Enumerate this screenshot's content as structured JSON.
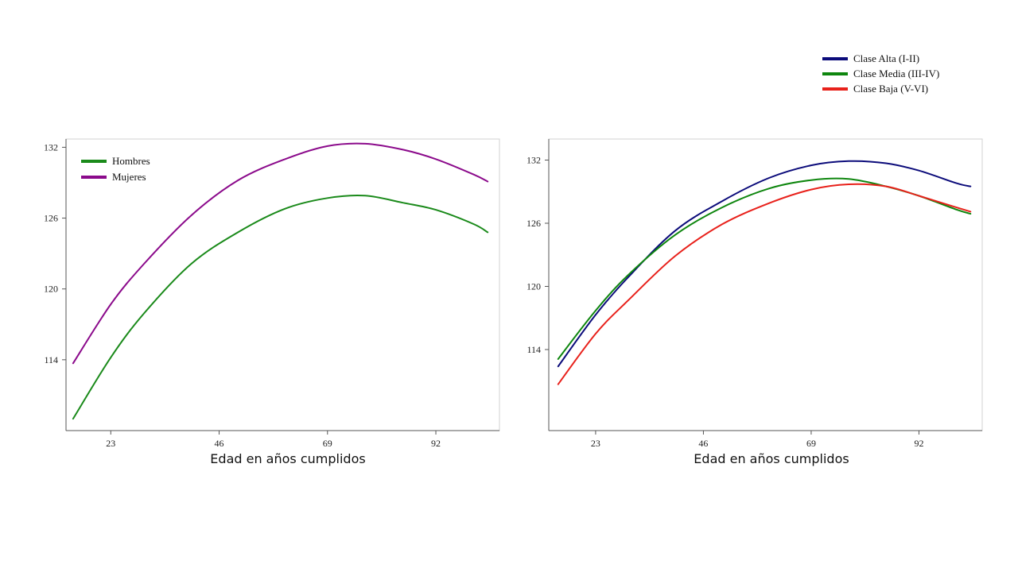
{
  "chart_data": [
    {
      "type": "line",
      "xlabel": "Edad en años cumplidos",
      "ylabel": "",
      "x_ticks": [
        23,
        46,
        69,
        92
      ],
      "y_ticks": [
        114,
        120,
        126,
        132
      ],
      "xlim": [
        13.5,
        105.5
      ],
      "ylim": [
        108.0,
        132.7
      ],
      "grid": false,
      "legend_position": "top-left",
      "series": [
        {
          "name": "Hombres",
          "color": "#1a8a1a",
          "x": [
            15,
            23,
            30,
            40,
            50,
            60,
            69,
            77,
            85,
            92,
            100,
            103
          ],
          "y": [
            109.0,
            114.2,
            117.9,
            122.1,
            124.8,
            126.8,
            127.7,
            127.9,
            127.3,
            126.7,
            125.5,
            124.8
          ]
        },
        {
          "name": "Mujeres",
          "color": "#8b0a8b",
          "x": [
            15,
            23,
            30,
            40,
            50,
            60,
            69,
            77,
            85,
            92,
            100,
            103
          ],
          "y": [
            113.7,
            118.7,
            122.1,
            126.2,
            129.2,
            131.0,
            132.1,
            132.3,
            131.8,
            131.0,
            129.7,
            129.1
          ]
        }
      ]
    },
    {
      "type": "line",
      "xlabel": "Edad en años cumplidos",
      "ylabel": "",
      "x_ticks": [
        23,
        46,
        69,
        92
      ],
      "y_ticks": [
        114,
        120,
        126,
        132
      ],
      "xlim": [
        13.0,
        105.5
      ],
      "ylim": [
        106.3,
        134.0
      ],
      "grid": false,
      "legend_position": "top-right",
      "series": [
        {
          "name": "Clase Alta (I-II)",
          "color": "#0b0b7a",
          "x": [
            15,
            23,
            30,
            40,
            50,
            60,
            69,
            77,
            85,
            92,
            100,
            103
          ],
          "y": [
            112.4,
            117.3,
            120.9,
            125.3,
            128.1,
            130.3,
            131.5,
            131.9,
            131.7,
            131.0,
            129.8,
            129.5
          ]
        },
        {
          "name": "Clase Media (III-IV)",
          "color": "#0e860e",
          "x": [
            15,
            23,
            30,
            40,
            50,
            60,
            69,
            77,
            85,
            92,
            100,
            103
          ],
          "y": [
            113.1,
            117.7,
            121.1,
            124.9,
            127.5,
            129.3,
            130.1,
            130.2,
            129.5,
            128.6,
            127.3,
            126.9
          ]
        },
        {
          "name": "Clase Baja (V-VI)",
          "color": "#e8211b",
          "x": [
            15,
            23,
            30,
            40,
            50,
            60,
            69,
            77,
            85,
            92,
            100,
            103
          ],
          "y": [
            110.7,
            115.5,
            118.7,
            122.9,
            125.9,
            127.9,
            129.2,
            129.7,
            129.5,
            128.6,
            127.5,
            127.1
          ]
        }
      ]
    }
  ]
}
